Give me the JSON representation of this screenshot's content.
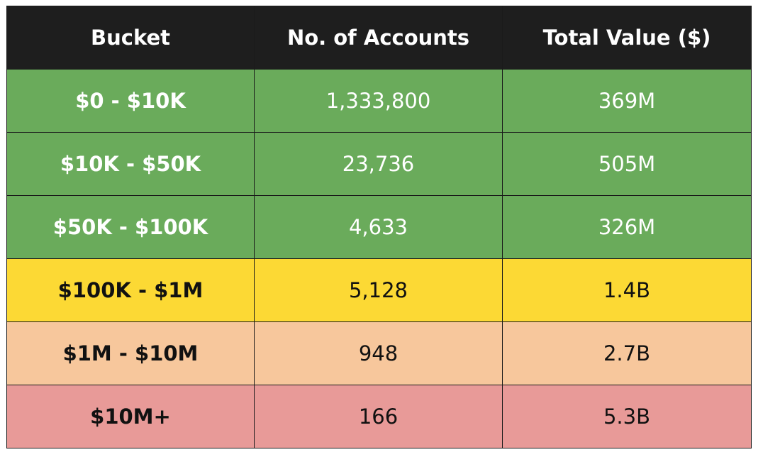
{
  "table": {
    "headers": [
      "Bucket",
      "No. of Accounts",
      "Total Value ($)"
    ],
    "rows": [
      {
        "bucket": "$0 - $10K",
        "accounts": "1,333,800",
        "value": "369M",
        "color": "#6aab5b"
      },
      {
        "bucket": "$10K - $50K",
        "accounts": "23,736",
        "value": "505M",
        "color": "#6aab5b"
      },
      {
        "bucket": "$50K - $100K",
        "accounts": "4,633",
        "value": "326M",
        "color": "#6aab5b"
      },
      {
        "bucket": "$100K - $1M",
        "accounts": "5,128",
        "value": "1.4B",
        "color": "#fcd934"
      },
      {
        "bucket": "$1M - $10M",
        "accounts": "948",
        "value": "2.7B",
        "color": "#f7c79c"
      },
      {
        "bucket": "$10M+",
        "accounts": "166",
        "value": "5.3B",
        "color": "#e89a98"
      }
    ]
  }
}
